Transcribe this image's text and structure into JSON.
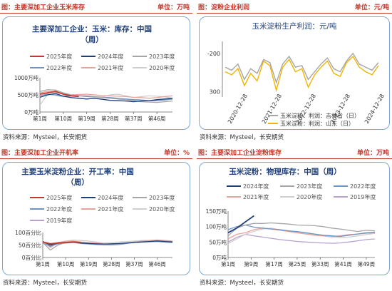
{
  "panels": [
    {
      "title": "图：主要深加工企业玉米库存",
      "unit": "单位：万吨",
      "source": "资料来源：Mysteel，长安期货"
    },
    {
      "title": "图：淀粉企业利润",
      "unit": "单位：元/吨",
      "source": "资料来源：Mysteel，长安期货"
    },
    {
      "title": "图：主要深加工企业开机率",
      "unit": "单位：%",
      "source": "资料来源：Mysteel，长安期货"
    },
    {
      "title": "图：主要深加工企业淀粉库存",
      "unit": "单位：万吨",
      "source": "资料来源：Mysteel，长安期货"
    }
  ],
  "colors": {
    "y2025": "#c0392b",
    "y2024": "#1f3f7a",
    "y2023": "#a6a6a6",
    "y2022": "#6f95c6",
    "y2021": "#e8a39b",
    "y2020": "#cfcfcf",
    "y2019": "#b9a3cc",
    "profit1": "#a6a6a6",
    "profit2": "#f0b400"
  },
  "chart_data": [
    {
      "type": "line",
      "title": "主要深加工企业：玉米：库存：中国",
      "subtitle": "（周）",
      "ytick_labels": [
        "0万吨",
        "500万吨",
        "1000万吨"
      ],
      "ylim": [
        0,
        1000
      ],
      "xtick_labels": [
        "第1周",
        "第10周",
        "第19周",
        "第28周",
        "第37周",
        "第46周"
      ],
      "x": [
        1,
        4,
        7,
        10,
        13,
        16,
        19,
        22,
        25,
        28,
        31,
        34,
        37,
        40,
        43,
        46,
        49,
        52
      ],
      "series": [
        {
          "name": "2025年度",
          "values": [
            520,
            560,
            600,
            520,
            470,
            450,
            null,
            null,
            null,
            null,
            null,
            null,
            null,
            null,
            null,
            null,
            null,
            null
          ]
        },
        {
          "name": "2024年度",
          "values": [
            430,
            500,
            540,
            460,
            420,
            400,
            380,
            400,
            370,
            340,
            330,
            320,
            300,
            320,
            330,
            360,
            380,
            400
          ]
        },
        {
          "name": "2023年度",
          "values": [
            600,
            650,
            640,
            560,
            500,
            480,
            470,
            450,
            420,
            400,
            380,
            360,
            330,
            300,
            290,
            280,
            300,
            320
          ]
        },
        {
          "name": "2022年度",
          "values": [
            480,
            520,
            500,
            460,
            470,
            470,
            450,
            440,
            430,
            420,
            400,
            380,
            360,
            350,
            330,
            330,
            350,
            380
          ]
        },
        {
          "name": "2021年度",
          "values": [
            560,
            600,
            580,
            520,
            500,
            510,
            520,
            500,
            480,
            470,
            460,
            450,
            430,
            420,
            400,
            420,
            450,
            470
          ]
        },
        {
          "name": "2020年度",
          "values": [
            200,
            520,
            480,
            440,
            460,
            480,
            470,
            450,
            440,
            500,
            520,
            470,
            420,
            450,
            470,
            460,
            440,
            400
          ]
        }
      ],
      "legend": "top"
    },
    {
      "type": "line",
      "title": "玉米淀粉生产利润：元/吨",
      "ytick_labels": [
        "-200",
        "300"
      ],
      "ylim": [
        -250,
        400
      ],
      "xtick_labels": [
        "2020-12-28",
        "2021-12-28",
        "2022-12-28",
        "2023-12-28",
        "2024-12-28"
      ],
      "series": [
        {
          "name": "玉米淀粉：利润：吉林省（日）",
          "values": [
            120,
            80,
            160,
            -40,
            100,
            40,
            220,
            180,
            -80,
            160,
            260,
            120,
            140,
            -40,
            60,
            160,
            240,
            100,
            60,
            200,
            300,
            160,
            120,
            80,
            180
          ]
        },
        {
          "name": "玉米淀粉：利润：山东（日）",
          "values": [
            60,
            20,
            100,
            -120,
            40,
            -60,
            200,
            140,
            -180,
            120,
            220,
            60,
            100,
            -140,
            20,
            120,
            200,
            40,
            0,
            180,
            260,
            120,
            60,
            20,
            140
          ]
        }
      ],
      "legend": "bottom"
    },
    {
      "type": "line",
      "title": "主要玉米淀粉企业：开工率：中国",
      "subtitle": "（周）",
      "ytick_labels": [
        "0百分比",
        "50百分比",
        "100百分比"
      ],
      "ylim": [
        0,
        100
      ],
      "xtick_labels": [
        "第1周",
        "第10周",
        "第19周",
        "第28周",
        "第37周",
        "第46周"
      ],
      "x": [
        1,
        4,
        7,
        10,
        13,
        16,
        19,
        22,
        25,
        28,
        31,
        34,
        37,
        40,
        43,
        46,
        49,
        52
      ],
      "series": [
        {
          "name": "2025年度",
          "values": [
            62,
            55,
            58,
            60,
            62,
            60,
            null,
            null,
            null,
            null,
            null,
            null,
            null,
            null,
            null,
            null,
            null,
            null
          ]
        },
        {
          "name": "2024年度",
          "values": [
            64,
            50,
            58,
            60,
            62,
            58,
            56,
            55,
            54,
            55,
            56,
            58,
            60,
            62,
            64,
            66,
            64,
            62
          ]
        },
        {
          "name": "2023年度",
          "values": [
            60,
            30,
            50,
            60,
            62,
            60,
            58,
            55,
            50,
            52,
            55,
            58,
            62,
            64,
            66,
            68,
            66,
            64
          ]
        },
        {
          "name": "2022年度",
          "values": [
            58,
            45,
            55,
            58,
            60,
            56,
            54,
            52,
            50,
            50,
            52,
            56,
            60,
            62,
            63,
            64,
            62,
            60
          ]
        },
        {
          "name": "2021年度",
          "values": [
            66,
            40,
            60,
            64,
            66,
            62,
            60,
            58,
            54,
            52,
            54,
            58,
            62,
            66,
            68,
            70,
            68,
            66
          ]
        },
        {
          "name": "2020年度",
          "values": [
            62,
            50,
            60,
            66,
            70,
            68,
            66,
            62,
            58,
            60,
            62,
            64,
            66,
            68,
            68,
            66,
            64,
            62
          ]
        },
        {
          "name": "2019年度",
          "values": [
            56,
            48,
            56,
            60,
            62,
            60,
            58,
            56,
            54,
            54,
            56,
            58,
            60,
            62,
            64,
            64,
            62,
            60
          ]
        }
      ],
      "legend": "top"
    },
    {
      "type": "line",
      "title": "玉米淀粉：物理库存：中国（周）",
      "ytick_labels": [
        "0万吨",
        "50万吨",
        "100万吨",
        "150万吨"
      ],
      "ylim": [
        0,
        150
      ],
      "xtick_labels": [
        "第1周",
        "第9周",
        "第17周",
        "第25周",
        "第33周",
        "第41周",
        "第49周"
      ],
      "x": [
        1,
        4,
        7,
        10,
        13,
        16,
        19,
        22,
        25,
        28,
        31,
        34,
        37,
        40,
        43,
        46,
        49,
        52
      ],
      "series": [
        {
          "name": "2024年度",
          "values": [
            80,
            95,
            115,
            135,
            null,
            null,
            null,
            null,
            null,
            null,
            null,
            null,
            null,
            null,
            null,
            null,
            null,
            null
          ]
        },
        {
          "name": "2023年度",
          "values": [
            70,
            95,
            105,
            110,
            110,
            112,
            110,
            108,
            105,
            104,
            103,
            100,
            95,
            92,
            88,
            84,
            88,
            86
          ]
        },
        {
          "name": "2022年度",
          "values": [
            90,
            100,
            105,
            98,
            95,
            92,
            90,
            86,
            84,
            80,
            76,
            72,
            70,
            68,
            72,
            76,
            80,
            82
          ]
        },
        {
          "name": "2021年度",
          "values": [
            60,
            75,
            80,
            90,
            95,
            92,
            88,
            84,
            80,
            76,
            72,
            70,
            68,
            70,
            74,
            76,
            78,
            80
          ]
        },
        {
          "name": "2020年度",
          "values": [
            45,
            60,
            75,
            85,
            92,
            95,
            90,
            86,
            82,
            78,
            74,
            70,
            66,
            64,
            66,
            70,
            74,
            78
          ]
        },
        {
          "name": "2019年度",
          "values": [
            50,
            65,
            75,
            70,
            66,
            62,
            58,
            55,
            52,
            50,
            48,
            47,
            46,
            47,
            50,
            54,
            58,
            60
          ]
        }
      ],
      "legend": "top"
    }
  ]
}
